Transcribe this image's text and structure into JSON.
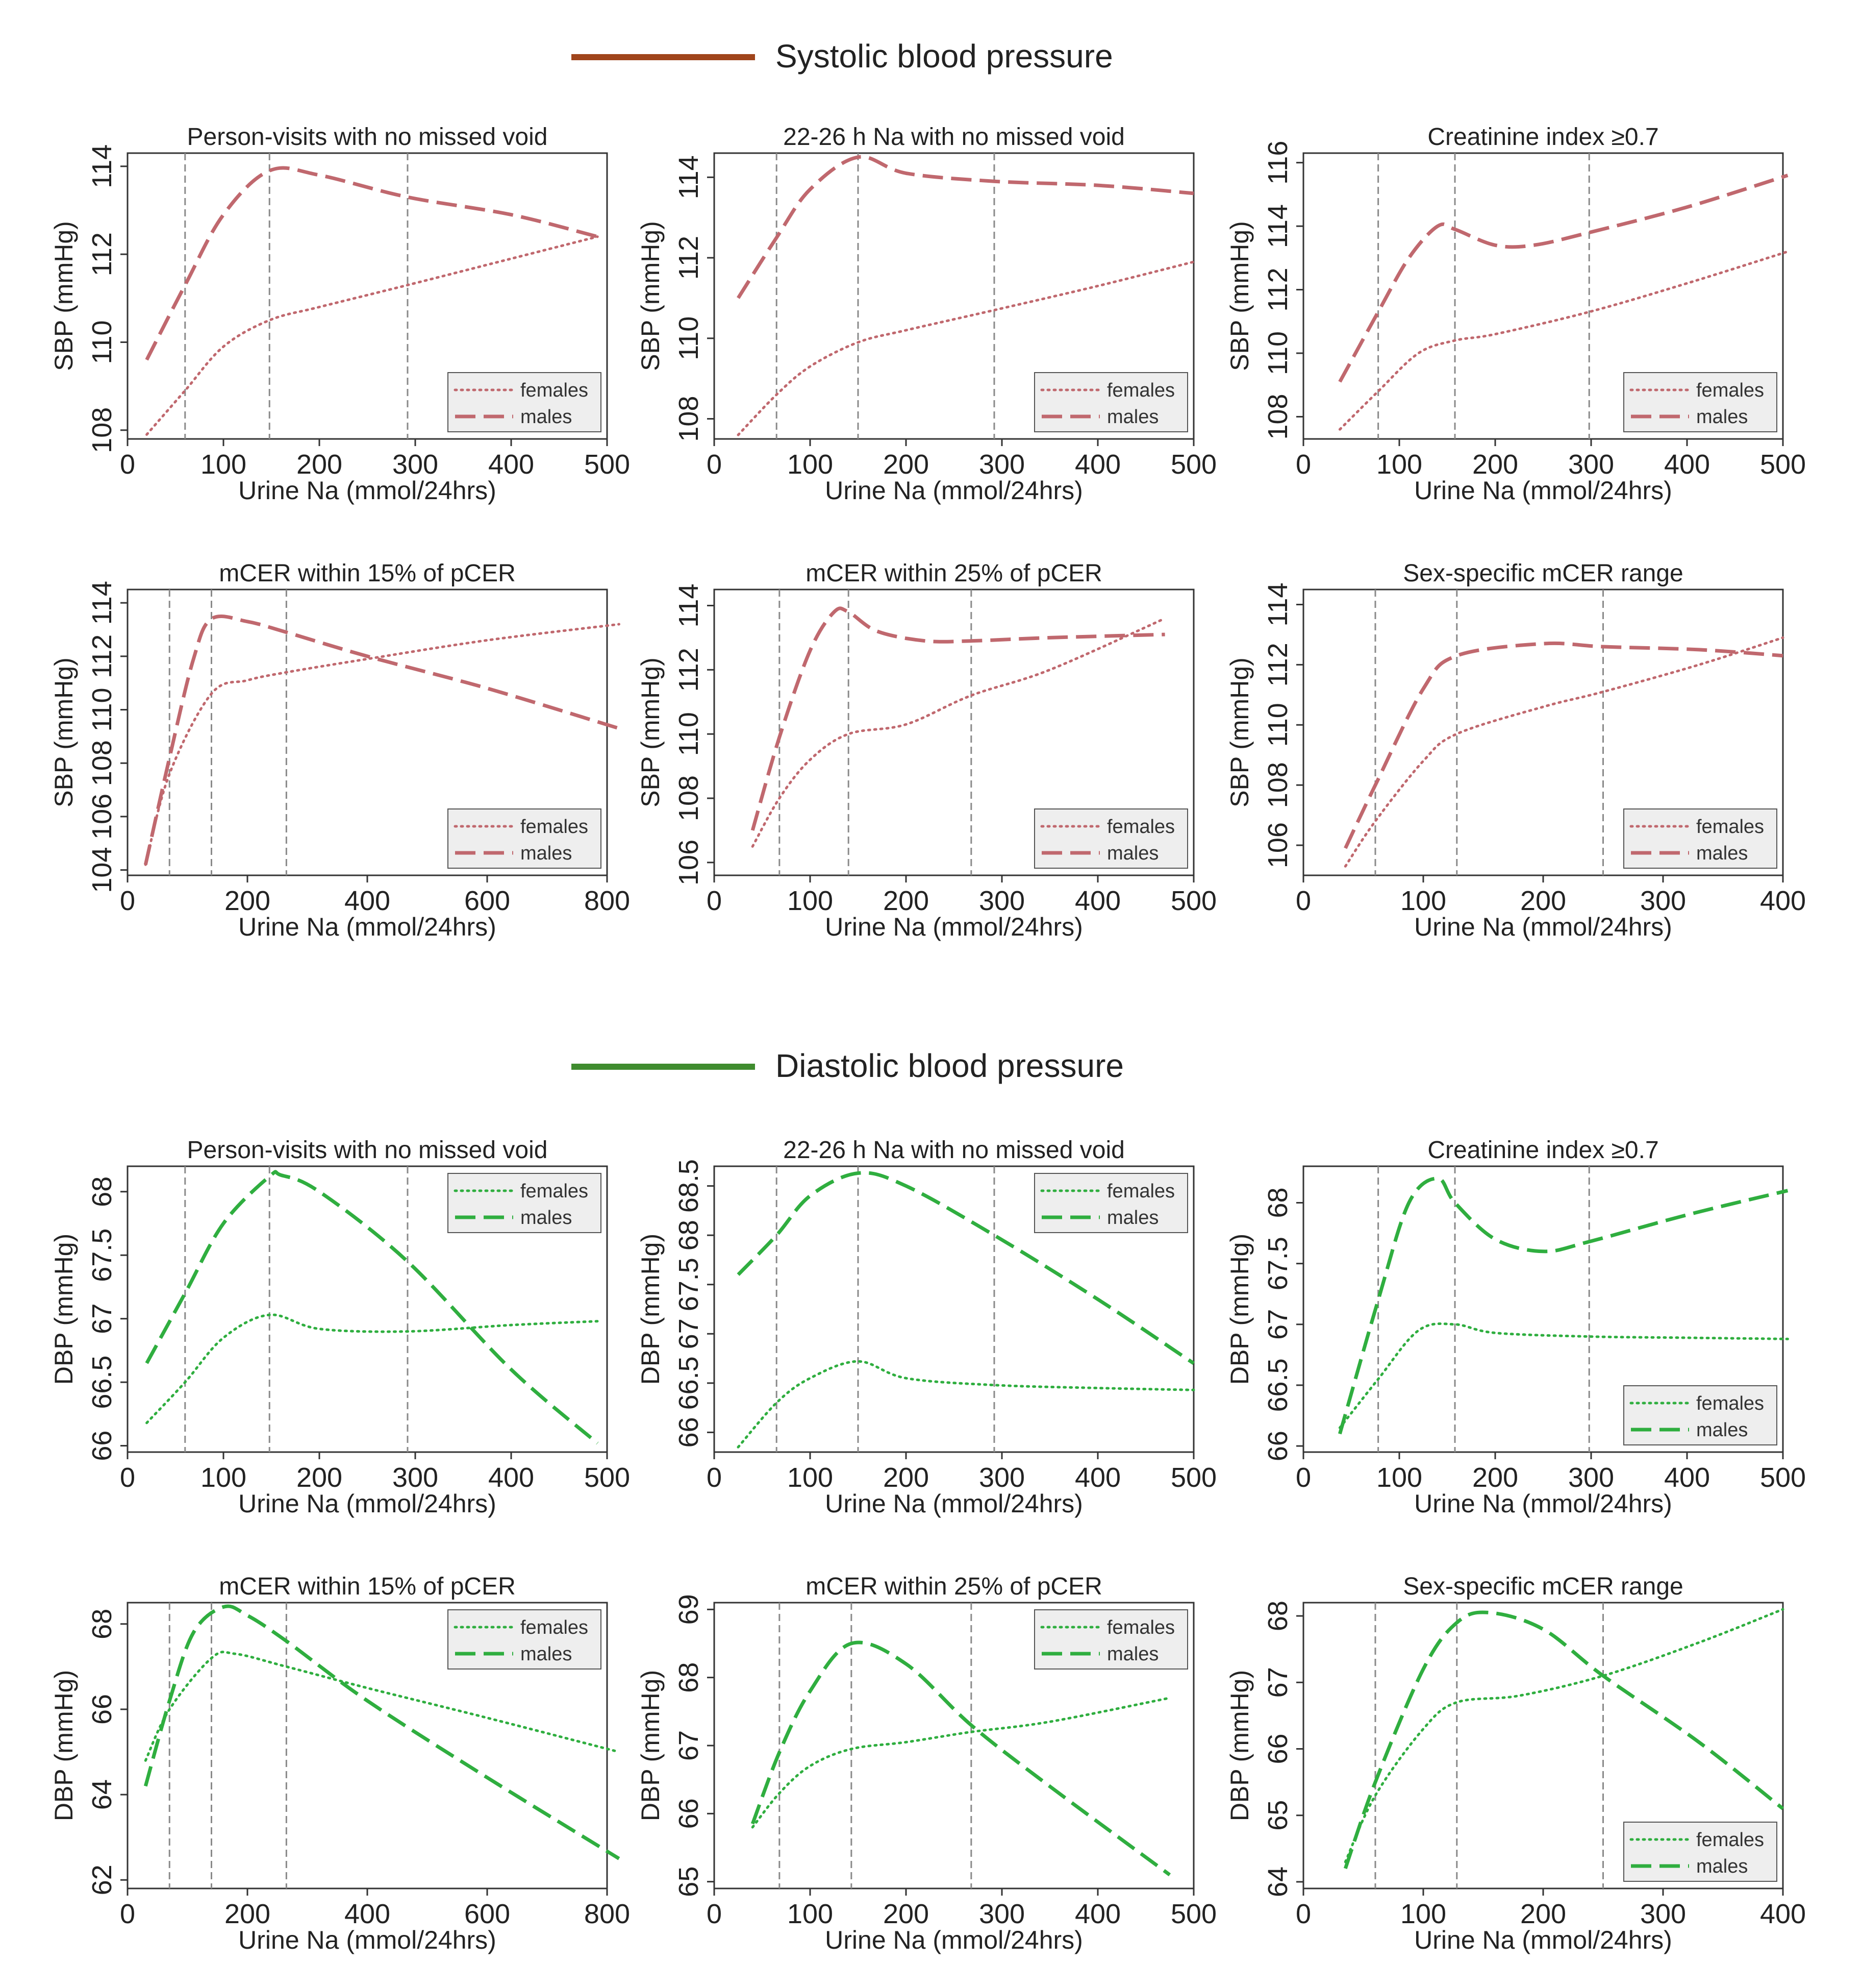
{
  "sections": [
    {
      "id": "sbp",
      "title": "Systolic blood pressure",
      "color": "#a0451c"
    },
    {
      "id": "dbp",
      "title": "Diastolic blood pressure",
      "color": "#3f8c2f"
    }
  ],
  "colors": {
    "sbp_line": "#c0686e",
    "dbp_line": "#2fae3f",
    "axis": "#333333",
    "vline": "#8a8a8a",
    "legend_bg": "#eeeeee"
  },
  "legend_labels": [
    "females",
    "males"
  ],
  "chart_data": [
    {
      "type": "line",
      "title": "Person-visits with no missed void",
      "xlabel": "Urine Na (mmol/24hrs)",
      "ylabel": "SBP (mmHg)",
      "xlim": [
        0,
        500
      ],
      "ylim": [
        107.8,
        114.3
      ],
      "xticks": [
        0,
        100,
        200,
        300,
        400,
        500
      ],
      "yticks": [
        108,
        110,
        112,
        114
      ],
      "vlines": [
        60,
        148,
        292
      ],
      "legend": "bottom-right",
      "series": [
        {
          "name": "females",
          "style": "dotted",
          "x": [
            20,
            60,
            100,
            148,
            200,
            292,
            400,
            490
          ],
          "y": [
            107.9,
            108.9,
            109.9,
            110.5,
            110.8,
            111.3,
            111.9,
            112.4
          ]
        },
        {
          "name": "males",
          "style": "dashed",
          "x": [
            20,
            60,
            100,
            148,
            200,
            292,
            400,
            490
          ],
          "y": [
            109.6,
            111.3,
            112.9,
            113.9,
            113.8,
            113.3,
            112.9,
            112.4
          ]
        }
      ]
    },
    {
      "type": "line",
      "title": "22-26 h Na with no missed void",
      "xlabel": "Urine Na (mmol/24hrs)",
      "ylabel": "SBP (mmHg)",
      "xlim": [
        0,
        500
      ],
      "ylim": [
        107.5,
        114.6
      ],
      "xticks": [
        0,
        100,
        200,
        300,
        400,
        500
      ],
      "yticks": [
        108,
        110,
        112,
        114
      ],
      "vlines": [
        65,
        150,
        292
      ],
      "legend": "bottom-right",
      "series": [
        {
          "name": "females",
          "style": "dotted",
          "x": [
            25,
            65,
            100,
            150,
            200,
            292,
            400,
            500
          ],
          "y": [
            107.6,
            108.6,
            109.3,
            109.9,
            110.2,
            110.7,
            111.3,
            111.9
          ]
        },
        {
          "name": "males",
          "style": "dashed",
          "x": [
            25,
            65,
            100,
            150,
            200,
            292,
            400,
            500
          ],
          "y": [
            111.0,
            112.5,
            113.7,
            114.5,
            114.1,
            113.9,
            113.8,
            113.6
          ]
        }
      ]
    },
    {
      "type": "line",
      "title": "Creatinine index ≥0.7",
      "xlabel": "Urine Na (mmol/24hrs)",
      "ylabel": "SBP (mmHg)",
      "xlim": [
        0,
        500
      ],
      "ylim": [
        107.3,
        116.3
      ],
      "xticks": [
        0,
        100,
        200,
        300,
        400,
        500
      ],
      "yticks": [
        108,
        110,
        112,
        114,
        116
      ],
      "vlines": [
        78,
        158,
        298
      ],
      "legend": "bottom-right",
      "series": [
        {
          "name": "females",
          "style": "dotted",
          "x": [
            38,
            78,
            120,
            158,
            200,
            298,
            400,
            505
          ],
          "y": [
            107.6,
            108.8,
            110.0,
            110.4,
            110.6,
            111.3,
            112.2,
            113.2
          ]
        },
        {
          "name": "males",
          "style": "dashed",
          "x": [
            38,
            78,
            110,
            140,
            158,
            200,
            240,
            298,
            400,
            505
          ],
          "y": [
            109.1,
            111.3,
            113.0,
            114.0,
            113.9,
            113.4,
            113.4,
            113.8,
            114.6,
            115.6
          ]
        }
      ]
    },
    {
      "type": "line",
      "title": "mCER within 15% of pCER",
      "xlabel": "Urine Na (mmol/24hrs)",
      "ylabel": "SBP (mmHg)",
      "xlim": [
        0,
        800
      ],
      "ylim": [
        103.8,
        114.5
      ],
      "xticks": [
        0,
        200,
        400,
        600,
        800
      ],
      "yticks": [
        104,
        106,
        108,
        110,
        112,
        114
      ],
      "vlines": [
        70,
        140,
        265
      ],
      "legend": "bottom-right",
      "series": [
        {
          "name": "females",
          "style": "dotted",
          "x": [
            30,
            70,
            140,
            200,
            265,
            400,
            600,
            820
          ],
          "y": [
            104.2,
            107.6,
            110.6,
            111.1,
            111.4,
            111.9,
            112.6,
            113.2
          ]
        },
        {
          "name": "males",
          "style": "dashed",
          "x": [
            30,
            70,
            110,
            140,
            200,
            265,
            400,
            600,
            820
          ],
          "y": [
            104.2,
            108.2,
            111.9,
            113.4,
            113.3,
            112.9,
            112.0,
            110.8,
            109.3
          ]
        }
      ]
    },
    {
      "type": "line",
      "title": "mCER within 25% of pCER",
      "xlabel": "Urine Na (mmol/24hrs)",
      "ylabel": "SBP (mmHg)",
      "xlim": [
        0,
        500
      ],
      "ylim": [
        105.6,
        114.5
      ],
      "xticks": [
        0,
        100,
        200,
        300,
        400,
        500
      ],
      "yticks": [
        106,
        108,
        110,
        112,
        114
      ],
      "vlines": [
        68,
        140,
        268
      ],
      "legend": "bottom-right",
      "series": [
        {
          "name": "females",
          "style": "dotted",
          "x": [
            40,
            68,
            100,
            140,
            200,
            268,
            350,
            470
          ],
          "y": [
            106.5,
            108.0,
            109.2,
            110.0,
            110.3,
            111.2,
            112.0,
            113.6
          ]
        },
        {
          "name": "males",
          "style": "dashed",
          "x": [
            40,
            68,
            100,
            125,
            140,
            170,
            220,
            268,
            350,
            470
          ],
          "y": [
            107.0,
            109.9,
            112.6,
            113.8,
            113.8,
            113.2,
            112.9,
            112.9,
            113.0,
            113.1
          ]
        }
      ]
    },
    {
      "type": "line",
      "title": "Sex-specific mCER range",
      "xlabel": "Urine Na (mmol/24hrs)",
      "ylabel": "SBP (mmHg)",
      "xlim": [
        0,
        400
      ],
      "ylim": [
        105.0,
        114.5
      ],
      "xticks": [
        0,
        100,
        200,
        300,
        400
      ],
      "yticks": [
        106,
        108,
        110,
        112,
        114
      ],
      "vlines": [
        60,
        128,
        250
      ],
      "legend": "bottom-right",
      "series": [
        {
          "name": "females",
          "style": "dotted",
          "x": [
            35,
            60,
            100,
            128,
            200,
            250,
            330,
            400
          ],
          "y": [
            105.3,
            106.8,
            108.8,
            109.7,
            110.6,
            111.1,
            112.0,
            112.9
          ]
        },
        {
          "name": "males",
          "style": "dashed",
          "x": [
            35,
            60,
            100,
            128,
            200,
            250,
            330,
            400
          ],
          "y": [
            105.9,
            108.0,
            111.2,
            112.3,
            112.7,
            112.6,
            112.5,
            112.3
          ]
        }
      ]
    },
    {
      "type": "line",
      "title": "Person-visits with no missed void",
      "xlabel": "Urine Na (mmol/24hrs)",
      "ylabel": "DBP (mmHg)",
      "xlim": [
        0,
        500
      ],
      "ylim": [
        65.95,
        68.2
      ],
      "xticks": [
        0,
        100,
        200,
        300,
        400,
        500
      ],
      "yticks": [
        66,
        66.5,
        67,
        67.5,
        68
      ],
      "vlines": [
        60,
        148,
        292
      ],
      "legend": "top-right",
      "series": [
        {
          "name": "females",
          "style": "dotted",
          "x": [
            20,
            60,
            100,
            148,
            200,
            292,
            400,
            490
          ],
          "y": [
            66.18,
            66.5,
            66.85,
            67.03,
            66.92,
            66.9,
            66.95,
            66.98
          ]
        },
        {
          "name": "males",
          "style": "dashed",
          "x": [
            20,
            60,
            100,
            148,
            160,
            200,
            292,
            400,
            490
          ],
          "y": [
            66.65,
            67.2,
            67.75,
            68.12,
            68.13,
            68.0,
            67.45,
            66.6,
            66.02
          ]
        }
      ]
    },
    {
      "type": "line",
      "title": "22-26 h Na with no missed void",
      "xlabel": "Urine Na (mmol/24hrs)",
      "ylabel": "DBP (mmHg)",
      "xlim": [
        0,
        500
      ],
      "ylim": [
        65.8,
        68.7
      ],
      "xticks": [
        0,
        100,
        200,
        300,
        400,
        500
      ],
      "yticks": [
        66,
        66.5,
        67,
        67.5,
        68,
        68.5
      ],
      "vlines": [
        65,
        150,
        292
      ],
      "legend": "top-right",
      "series": [
        {
          "name": "females",
          "style": "dotted",
          "x": [
            25,
            65,
            100,
            150,
            200,
            292,
            400,
            500
          ],
          "y": [
            65.85,
            66.3,
            66.55,
            66.72,
            66.55,
            66.48,
            66.45,
            66.43
          ]
        },
        {
          "name": "males",
          "style": "dashed",
          "x": [
            25,
            65,
            100,
            150,
            200,
            292,
            400,
            500
          ],
          "y": [
            67.6,
            68.0,
            68.4,
            68.63,
            68.5,
            68.0,
            67.35,
            66.7
          ]
        }
      ]
    },
    {
      "type": "line",
      "title": "Creatinine index ≥0.7",
      "xlabel": "Urine Na (mmol/24hrs)",
      "ylabel": "DBP (mmHg)",
      "xlim": [
        0,
        500
      ],
      "ylim": [
        65.95,
        68.3
      ],
      "xticks": [
        0,
        100,
        200,
        300,
        400,
        500
      ],
      "yticks": [
        66,
        66.5,
        67,
        67.5,
        68
      ],
      "vlines": [
        78,
        158,
        298
      ],
      "legend": "bottom-right",
      "series": [
        {
          "name": "females",
          "style": "dotted",
          "x": [
            38,
            78,
            120,
            158,
            200,
            298,
            400,
            505
          ],
          "y": [
            66.15,
            66.55,
            66.95,
            67.0,
            66.93,
            66.9,
            66.89,
            66.88
          ]
        },
        {
          "name": "males",
          "style": "dashed",
          "x": [
            38,
            78,
            110,
            140,
            158,
            200,
            250,
            298,
            400,
            505
          ],
          "y": [
            66.1,
            67.2,
            68.0,
            68.2,
            68.0,
            67.7,
            67.6,
            67.68,
            67.9,
            68.1
          ]
        }
      ]
    },
    {
      "type": "line",
      "title": "mCER within 15% of pCER",
      "xlabel": "Urine Na (mmol/24hrs)",
      "ylabel": "DBP (mmHg)",
      "xlim": [
        0,
        800
      ],
      "ylim": [
        61.8,
        68.5
      ],
      "xticks": [
        0,
        200,
        400,
        600,
        800
      ],
      "yticks": [
        62,
        64,
        66,
        68
      ],
      "vlines": [
        70,
        140,
        265
      ],
      "legend": "top-right",
      "series": [
        {
          "name": "females",
          "style": "dotted",
          "x": [
            30,
            70,
            140,
            180,
            265,
            400,
            600,
            820
          ],
          "y": [
            64.8,
            66.0,
            67.2,
            67.3,
            67.0,
            66.5,
            65.8,
            65.0
          ]
        },
        {
          "name": "males",
          "style": "dashed",
          "x": [
            30,
            70,
            110,
            160,
            200,
            265,
            400,
            600,
            820
          ],
          "y": [
            64.2,
            66.2,
            67.8,
            68.4,
            68.2,
            67.6,
            66.2,
            64.4,
            62.5
          ]
        }
      ]
    },
    {
      "type": "line",
      "title": "mCER within 25% of pCER",
      "xlabel": "Urine Na (mmol/24hrs)",
      "ylabel": "DBP (mmHg)",
      "xlim": [
        0,
        500
      ],
      "ylim": [
        64.9,
        69.1
      ],
      "xticks": [
        0,
        100,
        200,
        300,
        400,
        500
      ],
      "yticks": [
        65,
        66,
        67,
        68,
        69
      ],
      "vlines": [
        68,
        143,
        268
      ],
      "legend": "top-right",
      "series": [
        {
          "name": "females",
          "style": "dotted",
          "x": [
            40,
            68,
            100,
            143,
            200,
            268,
            350,
            475
          ],
          "y": [
            65.8,
            66.3,
            66.7,
            66.95,
            67.05,
            67.2,
            67.35,
            67.7
          ]
        },
        {
          "name": "males",
          "style": "dashed",
          "x": [
            40,
            68,
            100,
            143,
            200,
            268,
            350,
            475
          ],
          "y": [
            65.85,
            66.9,
            67.8,
            68.5,
            68.2,
            67.3,
            66.4,
            65.1
          ]
        }
      ]
    },
    {
      "type": "line",
      "title": "Sex-specific mCER range",
      "xlabel": "Urine Na (mmol/24hrs)",
      "ylabel": "DBP (mmHg)",
      "xlim": [
        0,
        400
      ],
      "ylim": [
        63.9,
        68.2
      ],
      "xticks": [
        0,
        100,
        200,
        300,
        400
      ],
      "yticks": [
        64,
        65,
        66,
        67,
        68
      ],
      "vlines": [
        60,
        128,
        250
      ],
      "legend": "bottom-right",
      "series": [
        {
          "name": "females",
          "style": "dotted",
          "x": [
            35,
            60,
            100,
            128,
            180,
            250,
            330,
            400
          ],
          "y": [
            64.3,
            65.3,
            66.3,
            66.7,
            66.8,
            67.1,
            67.6,
            68.1
          ]
        },
        {
          "name": "males",
          "style": "dashed",
          "x": [
            35,
            60,
            100,
            128,
            155,
            200,
            250,
            330,
            400
          ],
          "y": [
            64.2,
            65.5,
            67.2,
            67.9,
            68.05,
            67.8,
            67.1,
            66.1,
            65.1
          ]
        }
      ]
    }
  ]
}
